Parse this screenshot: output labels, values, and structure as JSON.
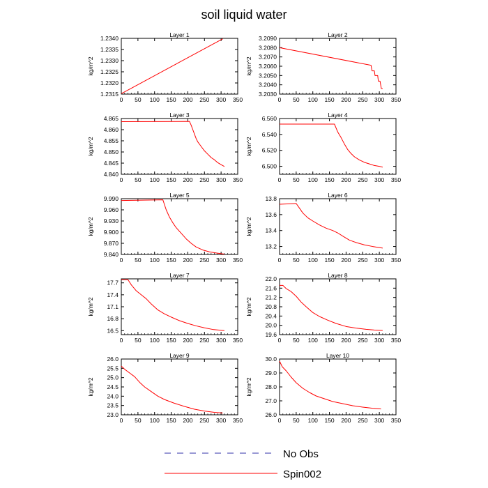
{
  "title": "soil liquid water",
  "legend": [
    {
      "label": "No Obs",
      "color": "#3333aa",
      "dash": true
    },
    {
      "label": "Spin002",
      "color": "#ff0000",
      "dash": false
    }
  ],
  "chart_data": [
    {
      "type": "line",
      "title": "Layer 1",
      "ylabel": "kg/m^2",
      "xlim": [
        0,
        350
      ],
      "ylim": [
        1.2315,
        1.234
      ],
      "xticks": [
        "0",
        "50",
        "100",
        "150",
        "200",
        "250",
        "300",
        "350"
      ],
      "yticks": [
        "1.2315",
        "1.2320",
        "1.2325",
        "1.2330",
        "1.2335",
        "1.2340"
      ],
      "series": [
        {
          "name": "Spin002",
          "color": "#ff0000",
          "points": [
            [
              0,
              1.23152
            ],
            [
              305,
              1.23398
            ]
          ]
        }
      ]
    },
    {
      "type": "line",
      "title": "Layer 2",
      "ylabel": "kg/m^2",
      "xlim": [
        0,
        350
      ],
      "ylim": [
        3.203,
        3.209
      ],
      "xticks": [
        "0",
        "50",
        "100",
        "150",
        "200",
        "250",
        "300",
        "350"
      ],
      "yticks": [
        "3.2030",
        "3.2040",
        "3.2050",
        "3.2060",
        "3.2070",
        "3.2080",
        "3.2090"
      ],
      "series": [
        {
          "name": "Spin002",
          "color": "#ff0000",
          "points": [
            [
              0,
              3.208
            ],
            [
              275,
              3.2061
            ],
            [
              278,
              3.2055
            ],
            [
              285,
              3.2055
            ],
            [
              287,
              3.205
            ],
            [
              295,
              3.205
            ],
            [
              297,
              3.2044
            ],
            [
              302,
              3.2044
            ],
            [
              304,
              3.204
            ],
            [
              306,
              3.2036
            ],
            [
              310,
              3.2036
            ]
          ]
        }
      ]
    },
    {
      "type": "line",
      "title": "Layer 3",
      "ylabel": "kg/m^2",
      "xlim": [
        0,
        350
      ],
      "ylim": [
        4.84,
        4.865
      ],
      "xticks": [
        "0",
        "50",
        "100",
        "150",
        "200",
        "250",
        "300",
        "350"
      ],
      "yticks": [
        "4.840",
        "4.845",
        "4.850",
        "4.855",
        "4.860",
        "4.865"
      ],
      "series": [
        {
          "name": "Spin002",
          "color": "#ff0000",
          "points": [
            [
              0,
              4.8636
            ],
            [
              205,
              4.8637
            ],
            [
              210,
              4.862
            ],
            [
              215,
              4.86
            ],
            [
              220,
              4.858
            ],
            [
              225,
              4.856
            ],
            [
              230,
              4.8545
            ],
            [
              240,
              4.8525
            ],
            [
              250,
              4.8505
            ],
            [
              260,
              4.849
            ],
            [
              270,
              4.8475
            ],
            [
              280,
              4.8465
            ],
            [
              290,
              4.8452
            ],
            [
              300,
              4.8443
            ],
            [
              310,
              4.8435
            ]
          ]
        }
      ]
    },
    {
      "type": "line",
      "title": "Layer 4",
      "ylabel": "kg/m^2",
      "xlim": [
        0,
        350
      ],
      "ylim": [
        6.49,
        6.56
      ],
      "xticks": [
        "0",
        "50",
        "100",
        "150",
        "200",
        "250",
        "300",
        "350"
      ],
      "yticks": [
        "6.500",
        "6.520",
        "6.540",
        "6.560"
      ],
      "series": [
        {
          "name": "Spin002",
          "color": "#ff0000",
          "points": [
            [
              0,
              6.553
            ],
            [
              165,
              6.553
            ],
            [
              175,
              6.543
            ],
            [
              185,
              6.536
            ],
            [
              195,
              6.528
            ],
            [
              205,
              6.521
            ],
            [
              215,
              6.516
            ],
            [
              225,
              6.512
            ],
            [
              240,
              6.508
            ],
            [
              255,
              6.505
            ],
            [
              270,
              6.503
            ],
            [
              285,
              6.501
            ],
            [
              300,
              6.5
            ],
            [
              310,
              6.499
            ]
          ]
        }
      ]
    },
    {
      "type": "line",
      "title": "Layer 5",
      "ylabel": "kg/m^2",
      "xlim": [
        0,
        350
      ],
      "ylim": [
        9.84,
        9.99
      ],
      "xticks": [
        "0",
        "50",
        "100",
        "150",
        "200",
        "250",
        "300",
        "350"
      ],
      "yticks": [
        "9.840",
        "9.870",
        "9.900",
        "9.930",
        "9.960",
        "9.990"
      ],
      "series": [
        {
          "name": "Spin002",
          "color": "#ff0000",
          "points": [
            [
              0,
              9.985
            ],
            [
              125,
              9.987
            ],
            [
              135,
              9.96
            ],
            [
              145,
              9.94
            ],
            [
              155,
              9.925
            ],
            [
              165,
              9.912
            ],
            [
              180,
              9.897
            ],
            [
              195,
              9.882
            ],
            [
              210,
              9.87
            ],
            [
              225,
              9.86
            ],
            [
              245,
              9.852
            ],
            [
              265,
              9.847
            ],
            [
              285,
              9.844
            ],
            [
              300,
              9.842
            ],
            [
              310,
              9.841
            ]
          ]
        }
      ]
    },
    {
      "type": "line",
      "title": "Layer 6",
      "ylabel": "kg/m^2",
      "xlim": [
        0,
        350
      ],
      "ylim": [
        13.1,
        13.8
      ],
      "xticks": [
        "0",
        "50",
        "100",
        "150",
        "200",
        "250",
        "300",
        "350"
      ],
      "yticks": [
        "13.2",
        "13.4",
        "13.6",
        "13.8"
      ],
      "series": [
        {
          "name": "Spin002",
          "color": "#ff0000",
          "points": [
            [
              0,
              13.73
            ],
            [
              50,
              13.74
            ],
            [
              60,
              13.68
            ],
            [
              70,
              13.62
            ],
            [
              85,
              13.56
            ],
            [
              100,
              13.52
            ],
            [
              120,
              13.47
            ],
            [
              140,
              13.43
            ],
            [
              160,
              13.4
            ],
            [
              175,
              13.37
            ],
            [
              190,
              13.33
            ],
            [
              210,
              13.28
            ],
            [
              230,
              13.25
            ],
            [
              255,
              13.22
            ],
            [
              280,
              13.2
            ],
            [
              310,
              13.18
            ]
          ]
        }
      ]
    },
    {
      "type": "line",
      "title": "Layer 7",
      "ylabel": "kg/m^2",
      "xlim": [
        0,
        350
      ],
      "ylim": [
        16.4,
        17.8
      ],
      "xticks": [
        "0",
        "50",
        "100",
        "150",
        "200",
        "250",
        "300",
        "350"
      ],
      "yticks": [
        "16.5",
        "16.8",
        "17.1",
        "17.4",
        "17.7"
      ],
      "series": [
        {
          "name": "Spin002",
          "color": "#ff0000",
          "points": [
            [
              0,
              17.78
            ],
            [
              20,
              17.78
            ],
            [
              30,
              17.65
            ],
            [
              45,
              17.5
            ],
            [
              60,
              17.4
            ],
            [
              75,
              17.3
            ],
            [
              90,
              17.17
            ],
            [
              110,
              17.02
            ],
            [
              130,
              16.92
            ],
            [
              150,
              16.84
            ],
            [
              175,
              16.75
            ],
            [
              200,
              16.68
            ],
            [
              225,
              16.62
            ],
            [
              250,
              16.57
            ],
            [
              275,
              16.53
            ],
            [
              300,
              16.51
            ],
            [
              310,
              16.5
            ]
          ]
        }
      ]
    },
    {
      "type": "line",
      "title": "Layer 8",
      "ylabel": "kg/m^2",
      "xlim": [
        0,
        350
      ],
      "ylim": [
        19.6,
        22.0
      ],
      "xticks": [
        "0",
        "50",
        "100",
        "150",
        "200",
        "250",
        "300",
        "350"
      ],
      "yticks": [
        "19.6",
        "20.0",
        "20.4",
        "20.8",
        "21.2",
        "21.6",
        "22.0"
      ],
      "series": [
        {
          "name": "Spin002",
          "color": "#ff0000",
          "points": [
            [
              0,
              21.72
            ],
            [
              10,
              21.72
            ],
            [
              20,
              21.58
            ],
            [
              35,
              21.45
            ],
            [
              50,
              21.25
            ],
            [
              65,
              21.0
            ],
            [
              80,
              20.8
            ],
            [
              100,
              20.55
            ],
            [
              120,
              20.38
            ],
            [
              145,
              20.22
            ],
            [
              170,
              20.08
            ],
            [
              200,
              19.95
            ],
            [
              230,
              19.88
            ],
            [
              260,
              19.83
            ],
            [
              285,
              19.8
            ],
            [
              310,
              19.78
            ]
          ]
        }
      ]
    },
    {
      "type": "line",
      "title": "Layer 9",
      "ylabel": "kg/m^2",
      "xlim": [
        0,
        350
      ],
      "ylim": [
        23.0,
        26.0
      ],
      "xticks": [
        "0",
        "50",
        "100",
        "150",
        "200",
        "250",
        "300",
        "350"
      ],
      "yticks": [
        "23.0",
        "23.5",
        "24.0",
        "24.5",
        "25.0",
        "25.5",
        "26.0"
      ],
      "series": [
        {
          "name": "Spin002",
          "color": "#ff0000",
          "points": [
            [
              0,
              25.62
            ],
            [
              10,
              25.45
            ],
            [
              25,
              25.25
            ],
            [
              40,
              25.05
            ],
            [
              55,
              24.75
            ],
            [
              70,
              24.5
            ],
            [
              90,
              24.25
            ],
            [
              110,
              24.0
            ],
            [
              130,
              23.82
            ],
            [
              160,
              23.62
            ],
            [
              190,
              23.45
            ],
            [
              220,
              23.3
            ],
            [
              250,
              23.2
            ],
            [
              280,
              23.13
            ],
            [
              305,
              23.1
            ]
          ]
        }
      ]
    },
    {
      "type": "line",
      "title": "Layer 10",
      "ylabel": "kg/m^2",
      "xlim": [
        0,
        350
      ],
      "ylim": [
        26.0,
        30.0
      ],
      "xticks": [
        "0",
        "50",
        "100",
        "150",
        "200",
        "250",
        "300",
        "350"
      ],
      "yticks": [
        "26.0",
        "27.0",
        "28.0",
        "29.0",
        "30.0"
      ],
      "series": [
        {
          "name": "Spin002",
          "color": "#ff0000",
          "points": [
            [
              0,
              29.85
            ],
            [
              8,
              29.45
            ],
            [
              20,
              29.15
            ],
            [
              35,
              28.7
            ],
            [
              50,
              28.3
            ],
            [
              70,
              27.9
            ],
            [
              90,
              27.6
            ],
            [
              110,
              27.35
            ],
            [
              135,
              27.15
            ],
            [
              160,
              26.95
            ],
            [
              190,
              26.8
            ],
            [
              220,
              26.65
            ],
            [
              250,
              26.55
            ],
            [
              280,
              26.47
            ],
            [
              305,
              26.42
            ]
          ]
        }
      ]
    }
  ]
}
